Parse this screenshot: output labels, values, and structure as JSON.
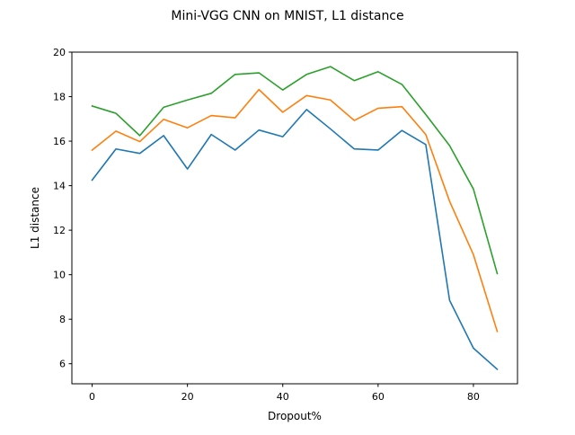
{
  "chart_data": {
    "type": "line",
    "title": "Mini-VGG CNN on MNIST, L1 distance",
    "xlabel": "Dropout%",
    "ylabel": "L1 distance",
    "xlim": [
      -4.25,
      89.25
    ],
    "ylim": [
      5.1,
      20.0
    ],
    "xticks": [
      0,
      20,
      40,
      60,
      80
    ],
    "yticks": [
      6,
      8,
      10,
      12,
      14,
      16,
      18,
      20
    ],
    "grid": false,
    "x": [
      0,
      5,
      10,
      15,
      20,
      25,
      30,
      35,
      40,
      45,
      50,
      55,
      60,
      65,
      70,
      75,
      80,
      85
    ],
    "series": [
      {
        "color": "#1f77b4",
        "values": [
          14.25,
          15.65,
          15.45,
          16.25,
          14.75,
          16.3,
          15.6,
          16.5,
          16.2,
          17.42,
          16.55,
          15.65,
          15.6,
          16.48,
          15.85,
          8.85,
          6.7,
          5.75
        ]
      },
      {
        "color": "#ff7f0e",
        "values": [
          15.6,
          16.45,
          15.98,
          16.98,
          16.6,
          17.15,
          17.05,
          18.32,
          17.3,
          18.05,
          17.85,
          16.93,
          17.48,
          17.55,
          16.3,
          13.3,
          10.9,
          7.45
        ]
      },
      {
        "color": "#2ca02c",
        "values": [
          17.58,
          17.25,
          16.25,
          17.52,
          17.85,
          18.15,
          19.0,
          19.07,
          18.3,
          19.0,
          19.35,
          18.72,
          19.12,
          18.55,
          17.2,
          15.8,
          13.85,
          10.05
        ]
      }
    ]
  }
}
